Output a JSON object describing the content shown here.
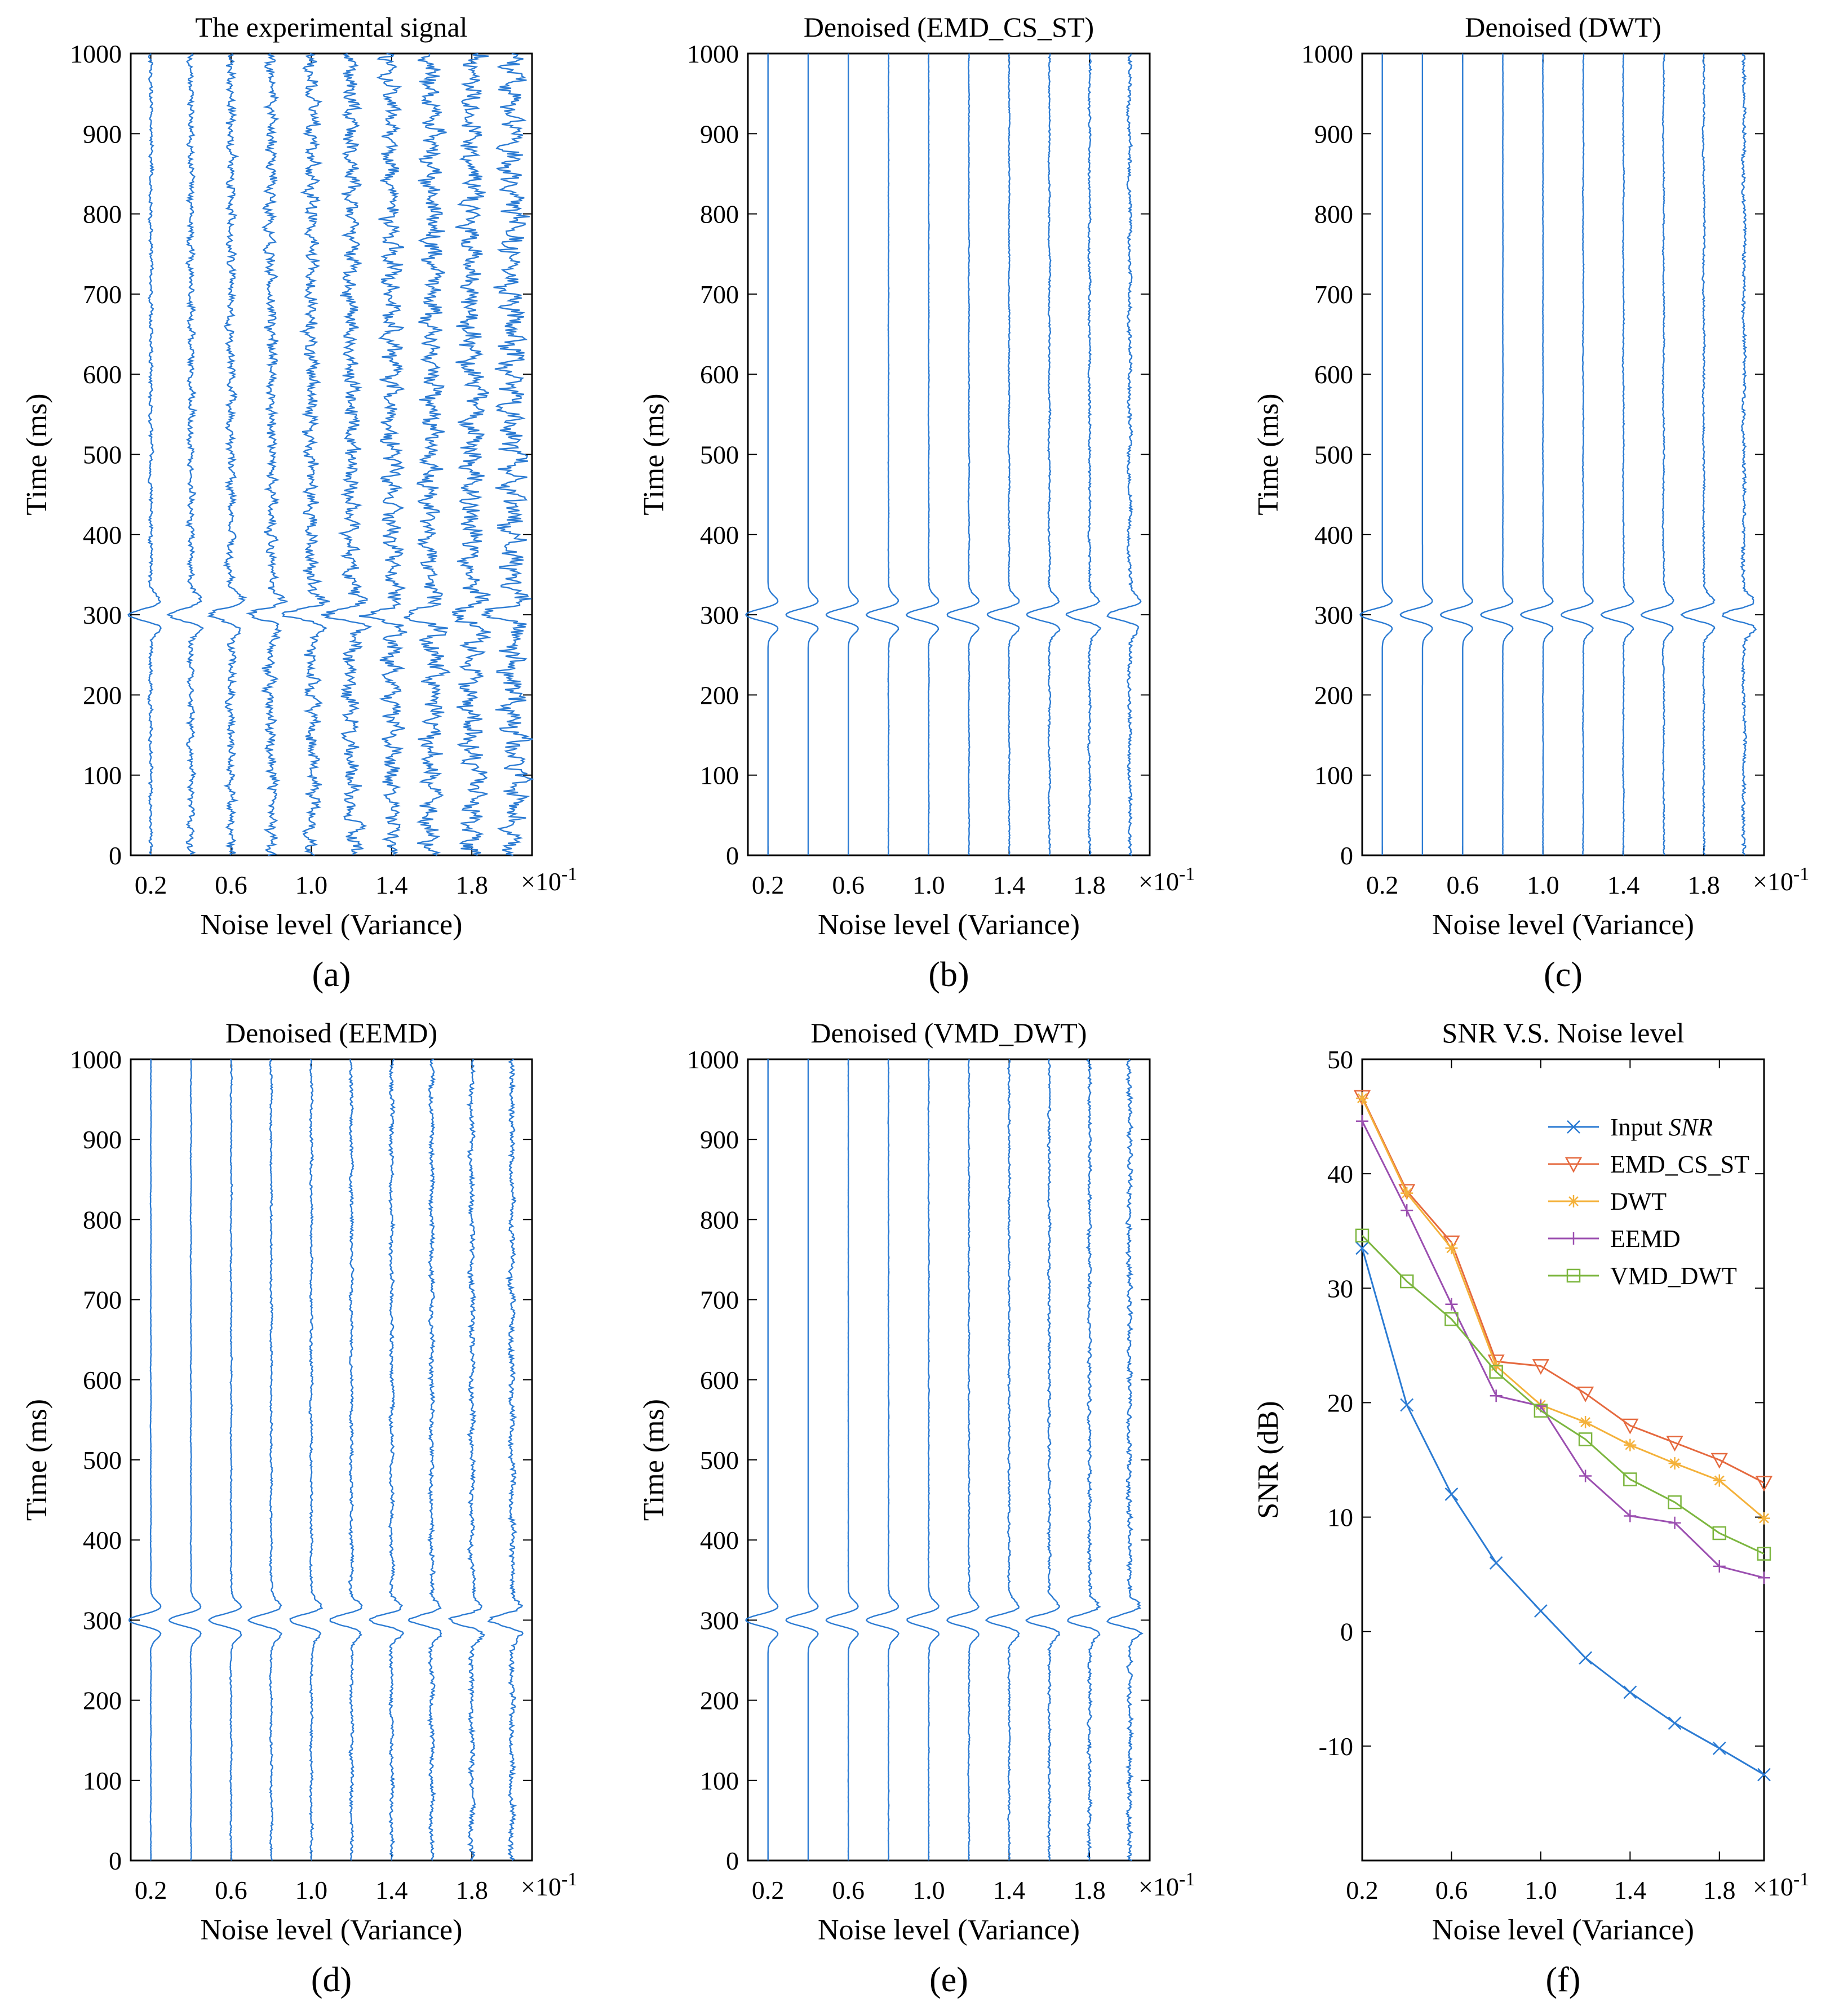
{
  "figure": {
    "x_multiplier": "×10-1",
    "x_multiplier_base": "×10",
    "x_multiplier_exp": "-1"
  },
  "chart_data": [
    {
      "id": "a",
      "type": "line",
      "subplot_label": "(a)",
      "title": "The experimental signal",
      "xlabel": "Noise level (Variance)",
      "ylabel": "Time (ms)",
      "xlim": [
        0.1,
        2.1
      ],
      "ylim": [
        0,
        1000
      ],
      "xticks": [
        0.2,
        0.6,
        1.0,
        1.4,
        1.8
      ],
      "xtick_labels": [
        "0.2",
        "0.6",
        "1.0",
        "1.4",
        "1.8"
      ],
      "yticks": [
        0,
        100,
        200,
        300,
        400,
        500,
        600,
        700,
        800,
        900,
        1000
      ],
      "ytick_labels": [
        "0",
        "100",
        "200",
        "300",
        "400",
        "500",
        "600",
        "700",
        "800",
        "900",
        "1000"
      ],
      "trace_positions": [
        0.2,
        0.4,
        0.6,
        0.8,
        1.0,
        1.2,
        1.4,
        1.6,
        1.8,
        2.0
      ],
      "event_time_ms": 300,
      "noise_amplitude": [
        0.012,
        0.02,
        0.028,
        0.036,
        0.044,
        0.052,
        0.06,
        0.068,
        0.076,
        0.084
      ],
      "wiggle_period_ms": 25,
      "color": "#2b7bd3"
    },
    {
      "id": "b",
      "type": "line",
      "subplot_label": "(b)",
      "title": "Denoised (EMD_CS_ST)",
      "xlabel": "Noise level (Variance)",
      "ylabel": "Time (ms)",
      "xlim": [
        0.1,
        2.1
      ],
      "ylim": [
        0,
        1000
      ],
      "xticks": [
        0.2,
        0.6,
        1.0,
        1.4,
        1.8
      ],
      "xtick_labels": [
        "0.2",
        "0.6",
        "1.0",
        "1.4",
        "1.8"
      ],
      "yticks": [
        0,
        100,
        200,
        300,
        400,
        500,
        600,
        700,
        800,
        900,
        1000
      ],
      "ytick_labels": [
        "0",
        "100",
        "200",
        "300",
        "400",
        "500",
        "600",
        "700",
        "800",
        "900",
        "1000"
      ],
      "trace_positions": [
        0.2,
        0.4,
        0.6,
        0.8,
        1.0,
        1.2,
        1.4,
        1.6,
        1.8,
        2.0
      ],
      "event_time_ms": 300,
      "noise_amplitude": [
        0,
        0,
        0,
        0.002,
        0.002,
        0.003,
        0.004,
        0.006,
        0.008,
        0.012
      ],
      "wiggle_period_ms": 90,
      "color": "#2b7bd3"
    },
    {
      "id": "c",
      "type": "line",
      "subplot_label": "(c)",
      "title": "Denoised (DWT)",
      "xlabel": "Noise level (Variance)",
      "ylabel": "Time (ms)",
      "xlim": [
        0.1,
        2.1
      ],
      "ylim": [
        0,
        1000
      ],
      "xticks": [
        0.2,
        0.6,
        1.0,
        1.4,
        1.8
      ],
      "xtick_labels": [
        "0.2",
        "0.6",
        "1.0",
        "1.4",
        "1.8"
      ],
      "yticks": [
        0,
        100,
        200,
        300,
        400,
        500,
        600,
        700,
        800,
        900,
        1000
      ],
      "ytick_labels": [
        "0",
        "100",
        "200",
        "300",
        "400",
        "500",
        "600",
        "700",
        "800",
        "900",
        "1000"
      ],
      "trace_positions": [
        0.2,
        0.4,
        0.6,
        0.8,
        1.0,
        1.2,
        1.4,
        1.6,
        1.8,
        2.0
      ],
      "event_time_ms": 300,
      "noise_amplitude": [
        0,
        0,
        0,
        0.001,
        0.002,
        0.003,
        0.004,
        0.005,
        0.007,
        0.012
      ],
      "wiggle_period_ms": 160,
      "color": "#2b7bd3"
    },
    {
      "id": "d",
      "type": "line",
      "subplot_label": "(d)",
      "title": "Denoised (EEMD)",
      "xlabel": "Noise level (Variance)",
      "ylabel": "Time (ms)",
      "xlim": [
        0.1,
        2.1
      ],
      "ylim": [
        0,
        1000
      ],
      "xticks": [
        0.2,
        0.6,
        1.0,
        1.4,
        1.8
      ],
      "xtick_labels": [
        "0.2",
        "0.6",
        "1.0",
        "1.4",
        "1.8"
      ],
      "yticks": [
        0,
        100,
        200,
        300,
        400,
        500,
        600,
        700,
        800,
        900,
        1000
      ],
      "ytick_labels": [
        "0",
        "100",
        "200",
        "300",
        "400",
        "500",
        "600",
        "700",
        "800",
        "900",
        "1000"
      ],
      "trace_positions": [
        0.2,
        0.4,
        0.6,
        0.8,
        1.0,
        1.2,
        1.4,
        1.6,
        1.8,
        2.0
      ],
      "event_time_ms": 300,
      "noise_amplitude": [
        0.002,
        0.003,
        0.005,
        0.007,
        0.009,
        0.011,
        0.013,
        0.015,
        0.017,
        0.019
      ],
      "wiggle_period_ms": 70,
      "color": "#2b7bd3"
    },
    {
      "id": "e",
      "type": "line",
      "subplot_label": "(e)",
      "title": "Denoised (VMD_DWT)",
      "xlabel": "Noise level (Variance)",
      "ylabel": "Time (ms)",
      "xlim": [
        0.1,
        2.1
      ],
      "ylim": [
        0,
        1000
      ],
      "xticks": [
        0.2,
        0.6,
        1.0,
        1.4,
        1.8
      ],
      "xtick_labels": [
        "0.2",
        "0.6",
        "1.0",
        "1.4",
        "1.8"
      ],
      "yticks": [
        0,
        100,
        200,
        300,
        400,
        500,
        600,
        700,
        800,
        900,
        1000
      ],
      "ytick_labels": [
        "0",
        "100",
        "200",
        "300",
        "400",
        "500",
        "600",
        "700",
        "800",
        "900",
        "1000"
      ],
      "trace_positions": [
        0.2,
        0.4,
        0.6,
        0.8,
        1.0,
        1.2,
        1.4,
        1.6,
        1.8,
        2.0
      ],
      "event_time_ms": 300,
      "noise_amplitude": [
        0,
        0,
        0.001,
        0.002,
        0.003,
        0.004,
        0.006,
        0.008,
        0.011,
        0.015
      ],
      "wiggle_period_ms": 18,
      "color": "#2b7bd3"
    },
    {
      "id": "f",
      "type": "line",
      "subplot_label": "(f)",
      "title": "SNR V.S.  Noise level",
      "xlabel": "Noise level (Variance)",
      "ylabel": "SNR (dB)",
      "xlim": [
        0.2,
        2.0
      ],
      "ylim": [
        -20,
        50
      ],
      "xticks": [
        0.2,
        0.6,
        1.0,
        1.4,
        1.8
      ],
      "xtick_labels": [
        "0.2",
        "0.6",
        "1.0",
        "1.4",
        "1.8"
      ],
      "yticks": [
        -10,
        0,
        10,
        20,
        30,
        40,
        50
      ],
      "ytick_labels": [
        "-10",
        "0",
        "10",
        "20",
        "30",
        "40",
        "50"
      ],
      "x": [
        0.2,
        0.4,
        0.6,
        0.8,
        1.0,
        1.2,
        1.4,
        1.6,
        1.8,
        2.0
      ],
      "legend_location": "top-right",
      "series": [
        {
          "name": "Input SNR",
          "label_prefix": "Input ",
          "label_italic": "SNR",
          "marker": "x",
          "color": "#2b7bd3",
          "values": [
            33.5,
            19.8,
            12.0,
            6.0,
            1.8,
            -2.3,
            -5.3,
            -8.0,
            -10.2,
            -12.5
          ]
        },
        {
          "name": "EMD_CS_ST",
          "label_prefix": "EMD_CS_ST",
          "label_italic": "",
          "marker": "triangle-down",
          "color": "#e5693e",
          "values": [
            46.7,
            38.5,
            34.0,
            23.6,
            23.2,
            20.8,
            18.0,
            16.5,
            15.0,
            13.0
          ]
        },
        {
          "name": "DWT",
          "label_prefix": "DWT",
          "label_italic": "",
          "marker": "star",
          "color": "#f4b13a",
          "values": [
            46.6,
            38.3,
            33.5,
            23.2,
            19.8,
            18.3,
            16.3,
            14.7,
            13.2,
            9.9
          ]
        },
        {
          "name": "EEMD",
          "label_prefix": "EEMD",
          "label_italic": "",
          "marker": "plus",
          "color": "#9b4fb0",
          "values": [
            44.6,
            36.8,
            28.6,
            20.6,
            19.7,
            13.6,
            10.1,
            9.5,
            5.7,
            4.7
          ]
        },
        {
          "name": "VMD_DWT",
          "label_prefix": "VMD_DWT",
          "label_italic": "",
          "marker": "square",
          "color": "#7cb63f",
          "values": [
            34.6,
            30.6,
            27.3,
            22.7,
            19.3,
            16.8,
            13.3,
            11.3,
            8.6,
            6.8
          ]
        }
      ]
    }
  ]
}
